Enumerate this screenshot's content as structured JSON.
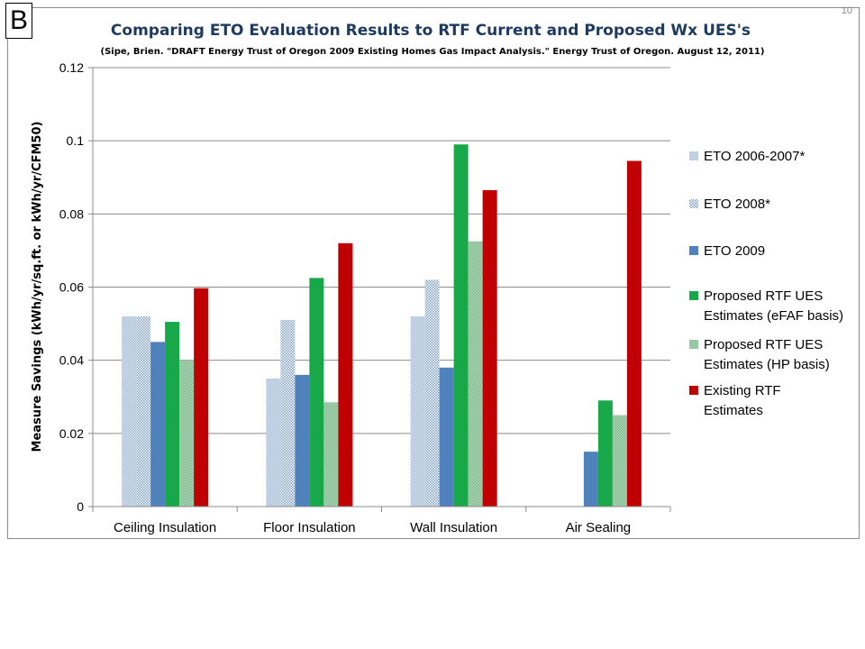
{
  "slide": {
    "number": "10",
    "badge": "B"
  },
  "colors": {
    "eto0607": "#a9bfd6",
    "eto2008": "#c9d8e8",
    "eto2009": "#4f81bd",
    "rtf_efaf": "#18a84a",
    "rtf_hp": "#79b88a",
    "existing": "#c00000"
  },
  "chart_data": {
    "type": "bar",
    "title": "Comparing ETO Evaluation Results to RTF Current and Proposed Wx UES's",
    "subtitle": "(Sipe, Brien. \"DRAFT Energy Trust of Oregon 2009 Existing Homes Gas Impact Analysis.\" Energy Trust of Oregon. August 12, 2011)",
    "ylabel": "Measure Savings (kWh/yr/sq.ft. or kWh/yr/CFM50)",
    "xlabel": "",
    "ylim": [
      0,
      0.12
    ],
    "yticks": [
      "0",
      "0.02",
      "0.04",
      "0.06",
      "0.08",
      "0.1",
      "0.12"
    ],
    "grid": true,
    "legend_position": "right",
    "categories": [
      "Ceiling Insulation",
      "Floor Insulation",
      "Wall Insulation",
      "Air Sealing"
    ],
    "series": [
      {
        "name": "ETO 2006-2007*",
        "values": [
          0.052,
          0.035,
          0.052,
          null
        ]
      },
      {
        "name": "ETO 2008*",
        "values": [
          0.052,
          0.051,
          0.062,
          null
        ]
      },
      {
        "name": "ETO 2009",
        "values": [
          0.045,
          0.036,
          0.038,
          0.015
        ]
      },
      {
        "name": "Proposed RTF UES Estimates (eFAF basis)",
        "values": [
          0.0505,
          0.0625,
          0.099,
          0.029
        ]
      },
      {
        "name": "Proposed RTF UES Estimates (HP basis)",
        "values": [
          0.04,
          0.0285,
          0.0725,
          0.025
        ]
      },
      {
        "name": "Existing RTF Estimates",
        "values": [
          0.0597,
          0.072,
          0.0865,
          0.0945
        ]
      }
    ]
  }
}
